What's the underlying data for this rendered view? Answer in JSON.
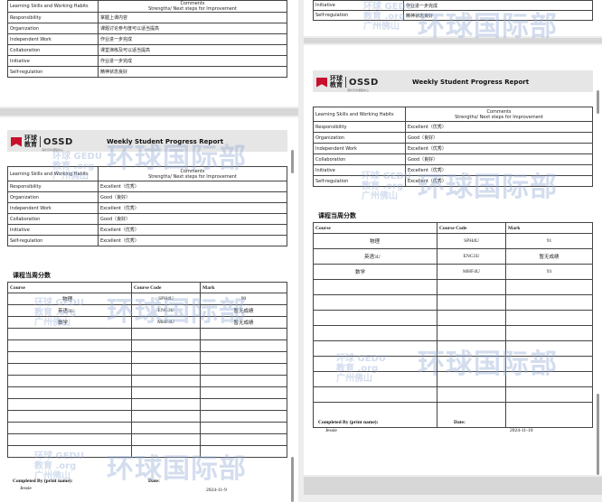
{
  "report_title": "Weekly Student Progress Report",
  "logo": {
    "cn": "环球教育",
    "en": "OSSD",
    "sub": "海外高中课程中心"
  },
  "watermark": {
    "main": "环球国际部",
    "small_1": "环球 GEDU",
    "small_2": "教育 .org",
    "small_3": "广州佛山"
  },
  "ls_header": {
    "col1": "Learning Skills and Working Habits",
    "col2_line1": "Comments",
    "col2_line2": "Strengths/ Next steps for Improvement"
  },
  "section_title": "课程当周分数",
  "course_header": {
    "course": "Course",
    "code": "Course Code",
    "mark": "Mark"
  },
  "completed_label": "Completed By (print name):",
  "date_label": "Date:",
  "completed_name": "Jessie",
  "page_a": {
    "skills": [
      {
        "skill": "Responsibility",
        "comment": "掌握上课内容"
      },
      {
        "skill": "Organization",
        "comment": "课题讨论参与度可以适当提高"
      },
      {
        "skill": "Independent Work",
        "comment": "作业进一步完成"
      },
      {
        "skill": "Collaboration",
        "comment": "课堂演练及可以适当提高"
      },
      {
        "skill": "Initiative",
        "comment": "作业进一步完成"
      },
      {
        "skill": "Self-regulation",
        "comment": "精神状态良好"
      }
    ]
  },
  "page_b": {
    "skills": [
      {
        "skill": "Responsibility",
        "comment": "Excellent（优秀）"
      },
      {
        "skill": "Organization",
        "comment": "Good（良好）"
      },
      {
        "skill": "Independent Work",
        "comment": "Excellent（优秀）"
      },
      {
        "skill": "Collaboration",
        "comment": "Good（良好）"
      },
      {
        "skill": "Initiative",
        "comment": "Excellent（优秀）"
      },
      {
        "skill": "Self-regulation",
        "comment": "Excellent（优秀）"
      }
    ],
    "courses": [
      {
        "course": "物理",
        "code": "SPH4U",
        "mark": "90"
      },
      {
        "course": "英语3U",
        "code": "ENG3U",
        "mark": "暂无成绩"
      },
      {
        "course": "数学",
        "code": "MHF4U",
        "mark": "暂无成绩"
      }
    ],
    "date": "2024-11-9"
  },
  "page_c": {
    "top_rows": [
      {
        "skill": "Initiative",
        "comment": "作业进一步完成"
      },
      {
        "skill": "Self-regulation",
        "comment": "精神状态良好"
      }
    ]
  },
  "page_d": {
    "skills": [
      {
        "skill": "Responsibility",
        "comment": "Excellent（优秀）"
      },
      {
        "skill": "Organization",
        "comment": "Good（良好）"
      },
      {
        "skill": "Independent Work",
        "comment": "Excellent（优秀）"
      },
      {
        "skill": "Collaboration",
        "comment": "Good（良好）"
      },
      {
        "skill": "Initiative",
        "comment": "Excellent（优秀）"
      },
      {
        "skill": "Self-regulation",
        "comment": "Excellent（优秀）"
      }
    ],
    "courses": [
      {
        "course": "物理",
        "code": "SPH4U",
        "mark": "91"
      },
      {
        "course": "英语3U",
        "code": "ENG3U",
        "mark": "暂无成绩"
      },
      {
        "course": "数学",
        "code": "MHF4U",
        "mark": "93"
      }
    ],
    "date": "2024-11-10"
  }
}
